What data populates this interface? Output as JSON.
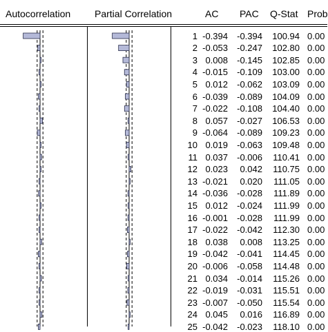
{
  "headers": {
    "autocorrelation": "Autocorrelation",
    "partial_correlation": "Partial Correlation",
    "ac": "AC",
    "pac": "PAC",
    "qstat": "Q-Stat",
    "prob": "Prob"
  },
  "chart_data": {
    "type": "table",
    "columns": [
      "",
      "AC",
      "PAC",
      "Q-Stat",
      "Prob"
    ],
    "rows": [
      {
        "lag": "1",
        "ac": "-0.394",
        "pac": "-0.394",
        "q": "100.94",
        "prob": "0.00"
      },
      {
        "lag": "2",
        "ac": "-0.053",
        "pac": "-0.247",
        "q": "102.80",
        "prob": "0.00"
      },
      {
        "lag": "3",
        "ac": "0.008",
        "pac": "-0.145",
        "q": "102.85",
        "prob": "0.00"
      },
      {
        "lag": "4",
        "ac": "-0.015",
        "pac": "-0.109",
        "q": "103.00",
        "prob": "0.00"
      },
      {
        "lag": "5",
        "ac": "0.012",
        "pac": "-0.062",
        "q": "103.09",
        "prob": "0.00"
      },
      {
        "lag": "6",
        "ac": "-0.039",
        "pac": "-0.089",
        "q": "104.09",
        "prob": "0.00"
      },
      {
        "lag": "7",
        "ac": "-0.022",
        "pac": "-0.108",
        "q": "104.40",
        "prob": "0.00"
      },
      {
        "lag": "8",
        "ac": "0.057",
        "pac": "-0.027",
        "q": "106.53",
        "prob": "0.00"
      },
      {
        "lag": "9",
        "ac": "-0.064",
        "pac": "-0.089",
        "q": "109.23",
        "prob": "0.00"
      },
      {
        "lag": "10",
        "ac": "0.019",
        "pac": "-0.063",
        "q": "109.48",
        "prob": "0.00"
      },
      {
        "lag": "11",
        "ac": "0.037",
        "pac": "-0.006",
        "q": "110.41",
        "prob": "0.00"
      },
      {
        "lag": "12",
        "ac": "0.023",
        "pac": "0.042",
        "q": "110.75",
        "prob": "0.00"
      },
      {
        "lag": "13",
        "ac": "-0.021",
        "pac": "0.020",
        "q": "111.05",
        "prob": "0.00"
      },
      {
        "lag": "14",
        "ac": "-0.036",
        "pac": "-0.028",
        "q": "111.89",
        "prob": "0.00"
      },
      {
        "lag": "15",
        "ac": "0.012",
        "pac": "-0.024",
        "q": "111.99",
        "prob": "0.00"
      },
      {
        "lag": "16",
        "ac": "-0.001",
        "pac": "-0.028",
        "q": "111.99",
        "prob": "0.00"
      },
      {
        "lag": "17",
        "ac": "-0.022",
        "pac": "-0.042",
        "q": "112.30",
        "prob": "0.00"
      },
      {
        "lag": "18",
        "ac": "0.038",
        "pac": "0.008",
        "q": "113.25",
        "prob": "0.00"
      },
      {
        "lag": "19",
        "ac": "-0.042",
        "pac": "-0.041",
        "q": "114.45",
        "prob": "0.00"
      },
      {
        "lag": "20",
        "ac": "-0.006",
        "pac": "-0.058",
        "q": "114.48",
        "prob": "0.00"
      },
      {
        "lag": "21",
        "ac": "0.034",
        "pac": "-0.014",
        "q": "115.26",
        "prob": "0.00"
      },
      {
        "lag": "22",
        "ac": "-0.019",
        "pac": "-0.031",
        "q": "115.51",
        "prob": "0.00"
      },
      {
        "lag": "23",
        "ac": "-0.007",
        "pac": "-0.050",
        "q": "115.54",
        "prob": "0.00"
      },
      {
        "lag": "24",
        "ac": "0.045",
        "pac": "0.016",
        "q": "116.89",
        "prob": "0.00"
      },
      {
        "lag": "25",
        "ac": "-0.042",
        "pac": "-0.023",
        "q": "118.10",
        "prob": "0.00"
      }
    ]
  },
  "colors": {
    "bar_fill": "#b4b9d8",
    "bar_stroke": "#2a2e4a"
  }
}
